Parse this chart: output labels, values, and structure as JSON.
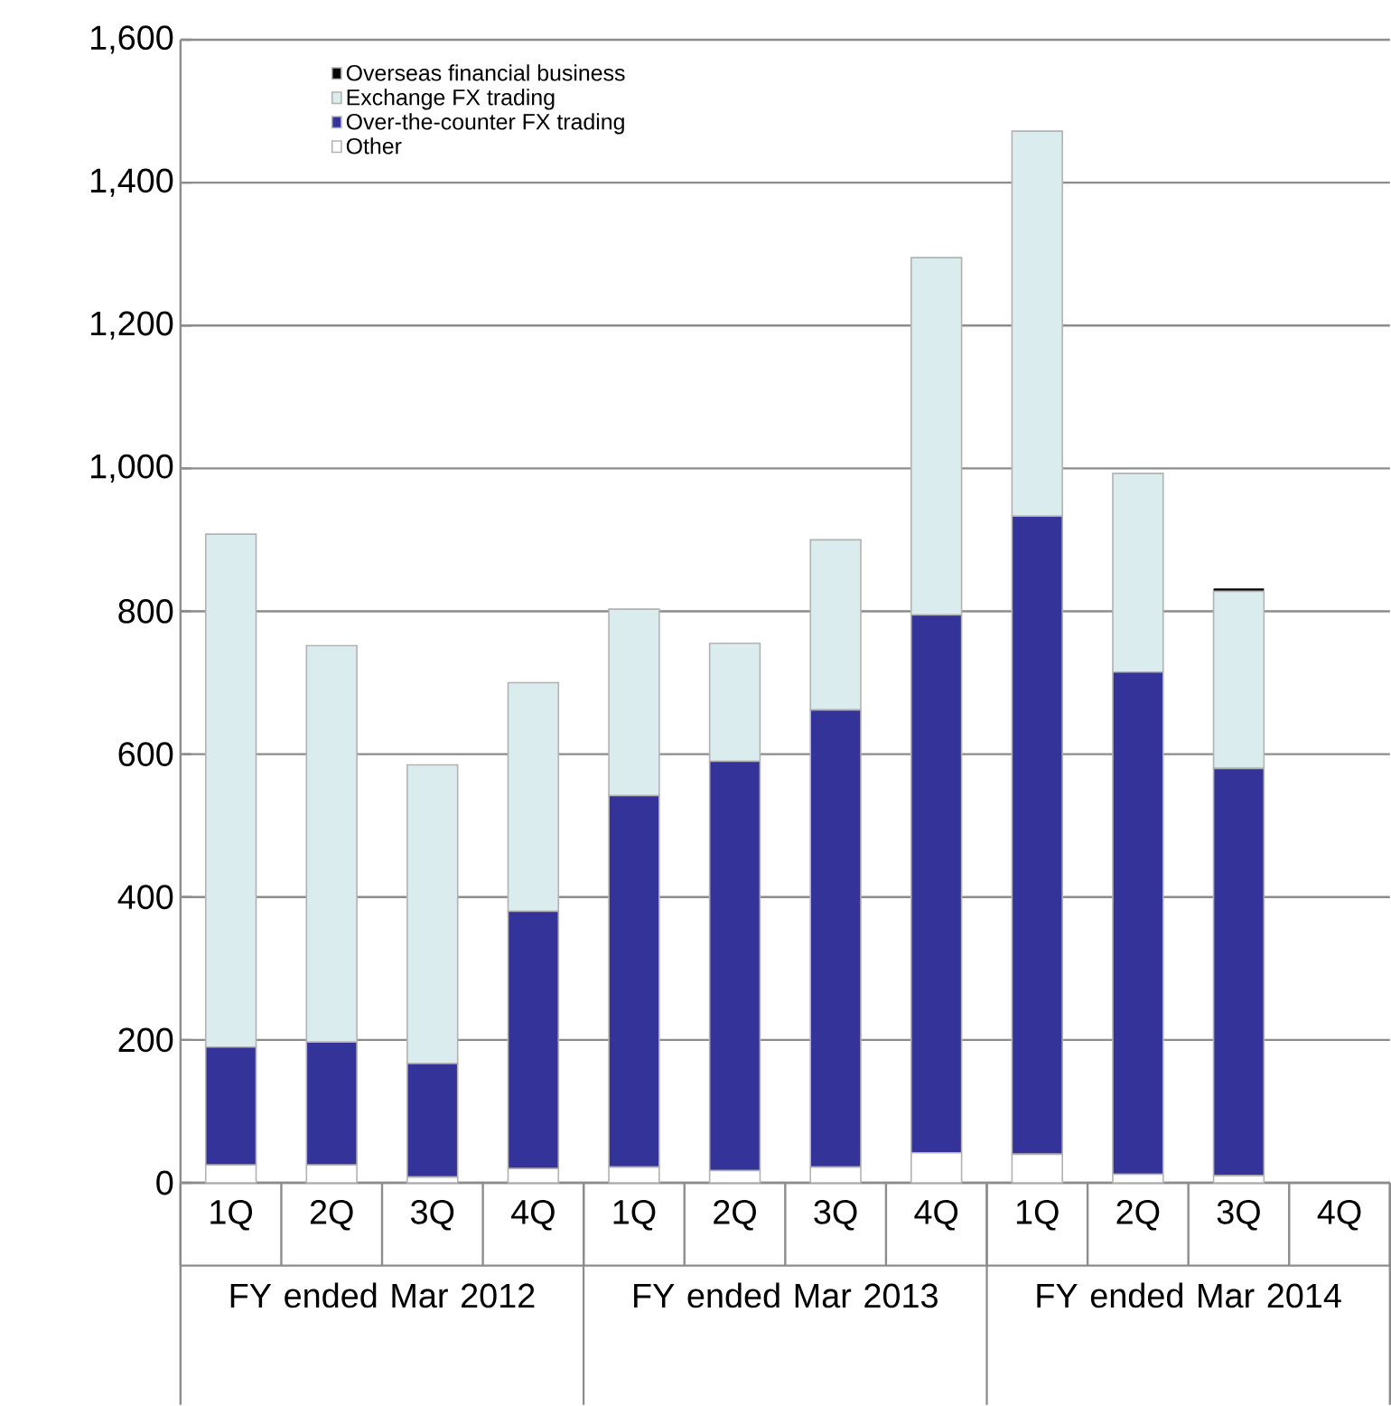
{
  "chart_data": {
    "type": "bar",
    "stacked": true,
    "grid": "y",
    "legend": "top left",
    "categories": [
      "1Q",
      "2Q",
      "3Q",
      "4Q",
      "1Q",
      "2Q",
      "3Q",
      "4Q",
      "1Q",
      "2Q",
      "3Q",
      "4Q"
    ],
    "series": [
      {
        "name": "Other",
        "color": "#ffffff",
        "values": [
          25,
          25,
          8,
          20,
          22,
          17,
          22,
          42,
          40,
          12,
          10,
          null
        ]
      },
      {
        "name": "Over-the-counter FX trading",
        "color": "#333399",
        "values": [
          165,
          172,
          159,
          360,
          520,
          573,
          640,
          753,
          893,
          703,
          570,
          null
        ]
      },
      {
        "name": "Exchange FX trading",
        "color": "#daecee",
        "values": [
          718,
          555,
          418,
          320,
          261,
          165,
          238,
          500,
          539,
          278,
          248,
          null
        ]
      },
      {
        "name": "Overseas financial business",
        "color": "#000000",
        "values": [
          null,
          null,
          null,
          null,
          null,
          null,
          null,
          null,
          null,
          null,
          4,
          null
        ]
      }
    ],
    "ylim": [
      0,
      1600
    ],
    "yticks": [
      0,
      {
        "value": 200,
        "label": "200"
      },
      {
        "value": 400,
        "label": "400"
      },
      {
        "value": 600,
        "label": "600"
      },
      {
        "value": 800,
        "label": "800"
      },
      {
        "value": 1000,
        "label": "1,000"
      },
      {
        "value": 1200,
        "label": "1,200"
      },
      {
        "value": 1400,
        "label": "1,400"
      },
      {
        "value": 1600,
        "label": "1,600"
      }
    ],
    "annotations": [
      "FY ended Mar 2012",
      "FY ended Mar 2013",
      "FY ended Mar 2014"
    ]
  }
}
